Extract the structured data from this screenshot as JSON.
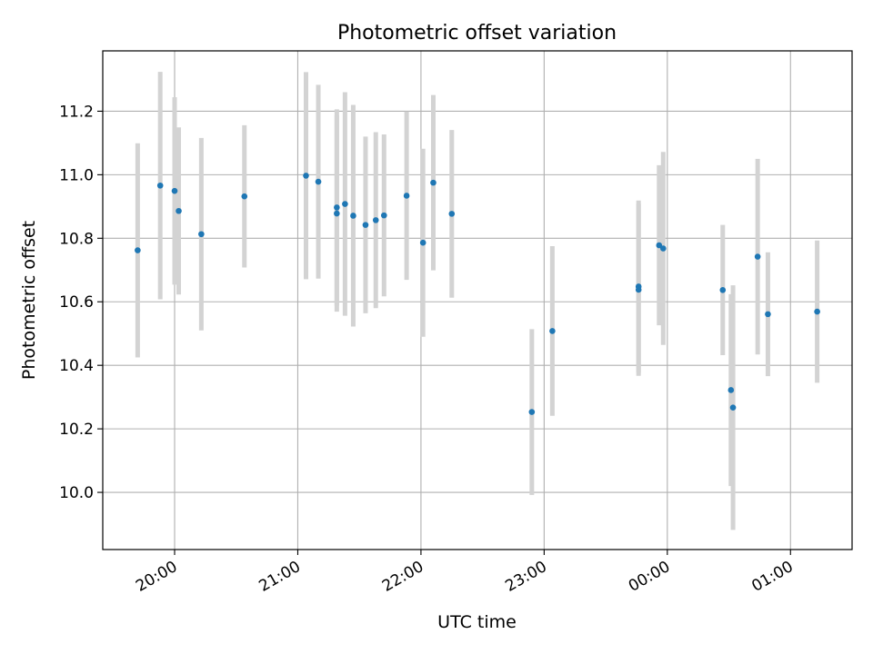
{
  "chart_data": {
    "type": "scatter",
    "title": "Photometric offset variation",
    "xlabel": "UTC time",
    "ylabel": "Photometric offset",
    "x_unit": "UTC time",
    "xlim": [
      "19:25",
      "01:30"
    ],
    "ylim": [
      9.82,
      11.39
    ],
    "xticks": [
      "20:00",
      "21:00",
      "22:00",
      "23:00",
      "00:00",
      "01:00"
    ],
    "yticks": [
      "10.0",
      "10.2",
      "10.4",
      "10.6",
      "10.8",
      "11.0",
      "11.2"
    ],
    "grid": true,
    "colors": {
      "marker": "#1f77b4",
      "errorbar": "#d3d3d3",
      "grid": "#b0b0b0"
    },
    "points": [
      {
        "x": "19:42",
        "y": 10.762,
        "err": 0.337
      },
      {
        "x": "19:53",
        "y": 10.966,
        "err": 0.358
      },
      {
        "x": "20:00",
        "y": 10.949,
        "err": 0.295
      },
      {
        "x": "20:02",
        "y": 10.886,
        "err": 0.263
      },
      {
        "x": "20:13",
        "y": 10.813,
        "err": 0.303
      },
      {
        "x": "20:34",
        "y": 10.932,
        "err": 0.224
      },
      {
        "x": "21:04",
        "y": 10.997,
        "err": 0.326
      },
      {
        "x": "21:10",
        "y": 10.978,
        "err": 0.305
      },
      {
        "x": "21:19",
        "y": 10.897,
        "err": 0.309
      },
      {
        "x": "21:19",
        "y": 10.878,
        "err": 0.309
      },
      {
        "x": "21:23",
        "y": 10.908,
        "err": 0.352
      },
      {
        "x": "21:27",
        "y": 10.871,
        "err": 0.349
      },
      {
        "x": "21:33",
        "y": 10.842,
        "err": 0.278
      },
      {
        "x": "21:38",
        "y": 10.857,
        "err": 0.277
      },
      {
        "x": "21:42",
        "y": 10.872,
        "err": 0.255
      },
      {
        "x": "21:53",
        "y": 10.934,
        "err": 0.265
      },
      {
        "x": "22:01",
        "y": 10.786,
        "err": 0.296
      },
      {
        "x": "22:06",
        "y": 10.975,
        "err": 0.276
      },
      {
        "x": "22:15",
        "y": 10.877,
        "err": 0.264
      },
      {
        "x": "22:54",
        "y": 10.253,
        "err": 0.261
      },
      {
        "x": "23:04",
        "y": 10.508,
        "err": 0.267
      },
      {
        "x": "23:46",
        "y": 10.648,
        "err": 0.271
      },
      {
        "x": "23:46",
        "y": 10.638,
        "err": 0.271
      },
      {
        "x": "23:56",
        "y": 10.778,
        "err": 0.252
      },
      {
        "x": "23:58",
        "y": 10.768,
        "err": 0.304
      },
      {
        "x": "00:27",
        "y": 10.637,
        "err": 0.205
      },
      {
        "x": "00:31",
        "y": 10.322,
        "err": 0.302
      },
      {
        "x": "00:32",
        "y": 10.267,
        "err": 0.385
      },
      {
        "x": "00:44",
        "y": 10.742,
        "err": 0.308
      },
      {
        "x": "00:49",
        "y": 10.561,
        "err": 0.195
      },
      {
        "x": "01:13",
        "y": 10.569,
        "err": 0.224
      }
    ]
  }
}
